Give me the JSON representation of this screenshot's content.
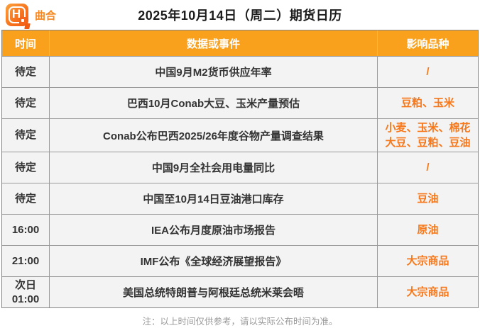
{
  "header": {
    "brand": "曲合",
    "logo_letter": "H",
    "title": "2025年10月14日（周二）期货日历"
  },
  "table": {
    "columns": [
      "时间",
      "数据或事件",
      "影响品种"
    ],
    "rows": [
      {
        "time": "待定",
        "event": "中国9月M2货币供应年率",
        "impact": "/"
      },
      {
        "time": "待定",
        "event": "巴西10月Conab大豆、玉米产量预估",
        "impact": "豆粕、玉米"
      },
      {
        "time": "待定",
        "event": "Conab公布巴西2025/26年度谷物产量调查结果",
        "impact": "小麦、玉米、棉花\n大豆、豆粕、豆油"
      },
      {
        "time": "待定",
        "event": "中国9月全社会用电量同比",
        "impact": "/"
      },
      {
        "time": "待定",
        "event": "中国至10月14日豆油港口库存",
        "impact": "豆油"
      },
      {
        "time": "16:00",
        "event": "IEA公布月度原油市场报告",
        "impact": "原油"
      },
      {
        "time": "21:00",
        "event": "IMF公布《全球经济展望报告》",
        "impact": "大宗商品"
      },
      {
        "time": "次日\n01:00",
        "event": "美国总统特朗普与阿根廷总统米莱会晤",
        "impact": "大宗商品"
      }
    ]
  },
  "footnote": "注：以上时间仅供参考，请以实际公布时间为准。",
  "colors": {
    "header_orange": "#F9A11C",
    "text_orange": "#F7781A",
    "logo_orange": "#F25A12",
    "row_background": "#F3F3F3",
    "grid_border": "#858585",
    "footnote_gray": "#9A9A9A"
  }
}
